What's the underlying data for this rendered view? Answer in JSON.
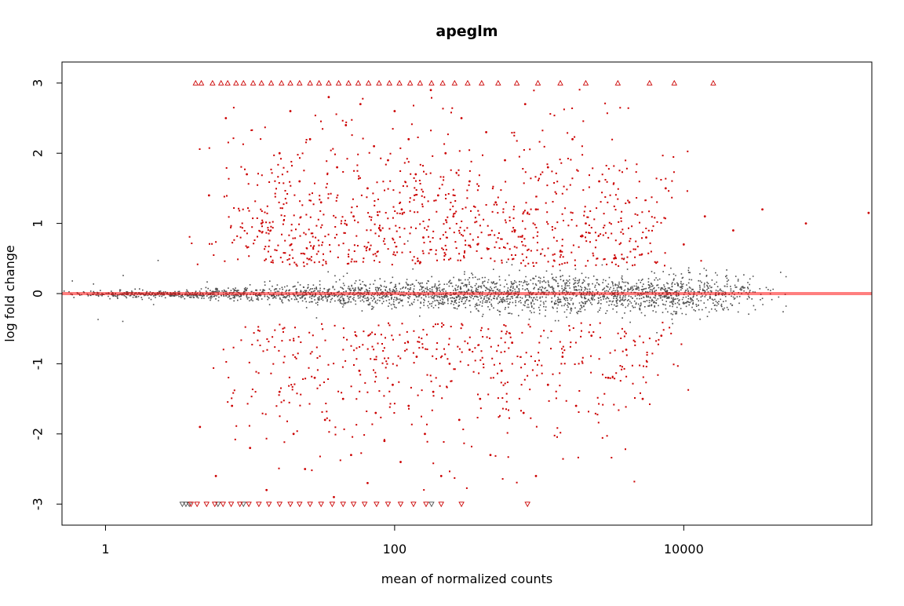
{
  "chart_data": {
    "type": "scatter",
    "title": "apeglm",
    "xlabel": "mean of normalized counts",
    "ylabel": "log fold change",
    "x_scale": "log10",
    "xlim": [
      0.5,
      200000
    ],
    "ylim": [
      -3.3,
      3.3
    ],
    "x_ticks": [
      {
        "value": 1,
        "label": "1"
      },
      {
        "value": 100,
        "label": "100"
      },
      {
        "value": 10000,
        "label": "10000"
      }
    ],
    "y_ticks": [
      {
        "value": -3,
        "label": "-3"
      },
      {
        "value": -2,
        "label": "-2"
      },
      {
        "value": -1,
        "label": "-1"
      },
      {
        "value": 0,
        "label": "0"
      },
      {
        "value": 1,
        "label": "1"
      },
      {
        "value": 2,
        "label": "2"
      },
      {
        "value": 3,
        "label": "3"
      }
    ],
    "grid": false,
    "legend": "none",
    "reference_line": {
      "y": 0,
      "color": "#ff0000"
    },
    "colors": {
      "not_significant": "#4d4d4d",
      "significant": "#cc0000",
      "background": "#ffffff",
      "axis": "#000000"
    },
    "series": [
      {
        "kind": "significant_up",
        "color": "#cc0000",
        "marker": "point",
        "points": [
          [
            5.2,
            1.4
          ],
          [
            6.8,
            2.5
          ],
          [
            9.5,
            1.7
          ],
          [
            12.0,
            1.0
          ],
          [
            16.0,
            2.0
          ],
          [
            19.0,
            2.6
          ],
          [
            22.0,
            1.6
          ],
          [
            26.0,
            2.2
          ],
          [
            31.0,
            1.3
          ],
          [
            35.0,
            2.8
          ],
          [
            40.0,
            1.8
          ],
          [
            46.0,
            2.4
          ],
          [
            52.0,
            1.1
          ],
          [
            58.0,
            2.7
          ],
          [
            65.0,
            1.5
          ],
          [
            72.0,
            2.1
          ],
          [
            80.0,
            0.9
          ],
          [
            90.0,
            1.9
          ],
          [
            100.0,
            2.6
          ],
          [
            112.0,
            1.2
          ],
          [
            125.0,
            2.2
          ],
          [
            140.0,
            1.7
          ],
          [
            158.0,
            0.8
          ],
          [
            178.0,
            2.9
          ],
          [
            200.0,
            1.4
          ],
          [
            225.0,
            2.0
          ],
          [
            255.0,
            1.1
          ],
          [
            290.0,
            2.5
          ],
          [
            330.0,
            1.6
          ],
          [
            375.0,
            0.7
          ],
          [
            430.0,
            2.3
          ],
          [
            500.0,
            1.3
          ],
          [
            580.0,
            1.9
          ],
          [
            680.0,
            0.9
          ],
          [
            800.0,
            2.7
          ],
          [
            950.0,
            1.2
          ],
          [
            1150.0,
            1.8
          ],
          [
            1400.0,
            0.6
          ],
          [
            1700.0,
            2.2
          ],
          [
            2100.0,
            1.0
          ],
          [
            2600.0,
            1.6
          ],
          [
            3300.0,
            0.5
          ],
          [
            4200.0,
            1.3
          ],
          [
            5500.0,
            0.8
          ],
          [
            7500.0,
            1.5
          ],
          [
            10000.0,
            0.7
          ],
          [
            14000.0,
            1.1
          ],
          [
            22000.0,
            0.9
          ],
          [
            35000.0,
            1.2
          ],
          [
            70000.0,
            1.0
          ],
          [
            190000.0,
            1.15
          ]
        ]
      },
      {
        "kind": "significant_down",
        "color": "#cc0000",
        "marker": "point",
        "points": [
          [
            4.5,
            -1.9
          ],
          [
            5.8,
            -2.6
          ],
          [
            7.5,
            -1.6
          ],
          [
            10.0,
            -2.2
          ],
          [
            13.0,
            -2.8
          ],
          [
            16.0,
            -1.4
          ],
          [
            20.0,
            -2.0
          ],
          [
            24.0,
            -2.5
          ],
          [
            28.0,
            -1.2
          ],
          [
            33.0,
            -1.8
          ],
          [
            38.0,
            -2.9
          ],
          [
            44.0,
            -1.5
          ],
          [
            50.0,
            -2.3
          ],
          [
            57.0,
            -1.1
          ],
          [
            65.0,
            -2.7
          ],
          [
            74.0,
            -1.7
          ],
          [
            85.0,
            -2.1
          ],
          [
            97.0,
            -1.3
          ],
          [
            110.0,
            -2.4
          ],
          [
            125.0,
            -1.6
          ],
          [
            142.0,
            -0.9
          ],
          [
            162.0,
            -2.0
          ],
          [
            185.0,
            -1.4
          ],
          [
            210.0,
            -2.6
          ],
          [
            240.0,
            -1.0
          ],
          [
            280.0,
            -1.8
          ],
          [
            330.0,
            -0.8
          ],
          [
            390.0,
            -1.5
          ],
          [
            460.0,
            -2.3
          ],
          [
            550.0,
            -1.1
          ],
          [
            650.0,
            -0.7
          ],
          [
            780.0,
            -1.7
          ],
          [
            950.0,
            -2.6
          ],
          [
            1150.0,
            -1.3
          ],
          [
            1450.0,
            -0.9
          ],
          [
            1800.0,
            -1.6
          ],
          [
            2300.0,
            -0.6
          ],
          [
            3000.0,
            -1.2
          ],
          [
            4000.0,
            -0.8
          ],
          [
            5200.0,
            -1.5
          ],
          [
            7000.0,
            -0.6
          ]
        ]
      },
      {
        "kind": "significant_clipped_top",
        "color": "#cc0000",
        "marker": "triangle-up",
        "y": 3,
        "x": [
          4.2,
          4.6,
          5.5,
          6.3,
          7.0,
          8.0,
          9.0,
          10.5,
          12.0,
          14.0,
          16.5,
          19.0,
          22.0,
          26.0,
          30.0,
          35.0,
          41.0,
          48.0,
          56.0,
          66.0,
          78.0,
          92.0,
          108.0,
          128.0,
          150.0,
          180.0,
          215.0,
          260.0,
          320.0,
          400.0,
          520.0,
          700.0,
          980.0,
          1400.0,
          2100.0,
          3500.0,
          5800.0,
          8600.0,
          16000.0
        ]
      },
      {
        "kind": "significant_clipped_bottom",
        "color": "#cc0000",
        "marker": "triangle-down",
        "y": -3,
        "x": [
          3.9,
          4.3,
          5.0,
          5.7,
          6.5,
          7.4,
          8.5,
          9.8,
          11.5,
          13.5,
          16.0,
          19.0,
          22.0,
          26.0,
          31.0,
          37.0,
          44.0,
          52.0,
          62.0,
          75.0,
          90.0,
          110.0,
          135.0,
          165.0,
          210.0,
          290.0,
          830.0
        ]
      },
      {
        "kind": "not_significant_clipped",
        "color": "#4d4d4d",
        "marker": "triangle-down",
        "y": -3,
        "x": [
          3.4,
          3.6,
          3.8,
          6.0,
          9.0,
          180.0
        ]
      }
    ]
  }
}
